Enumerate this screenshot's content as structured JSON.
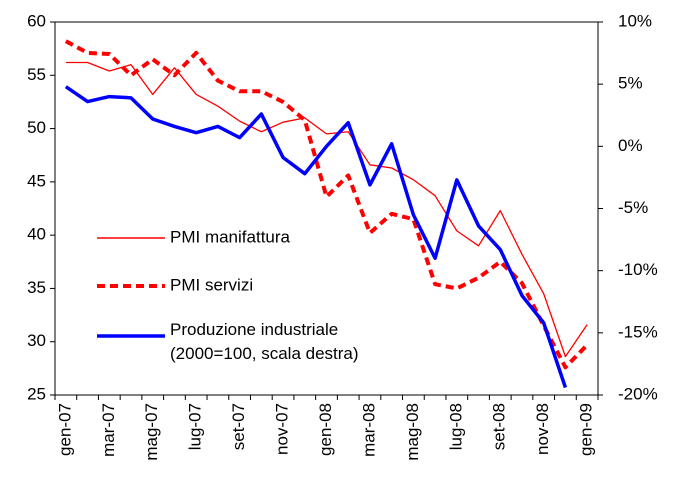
{
  "chart_data": {
    "type": "line",
    "categories": [
      "gen-07",
      null,
      "mar-07",
      null,
      "mag-07",
      null,
      "lug-07",
      null,
      "set-07",
      null,
      "nov-07",
      null,
      "gen-08",
      null,
      "mar-08",
      null,
      "mag-08",
      null,
      "lug-08",
      null,
      "set-08",
      null,
      "nov-08",
      null,
      "gen-09"
    ],
    "series": [
      {
        "name": "PMI manifattura",
        "color": "#ff0000",
        "style": "thin",
        "values": [
          56.2,
          56.2,
          55.4,
          56.0,
          53.2,
          55.7,
          53.2,
          52.1,
          50.7,
          49.7,
          50.6,
          51.0,
          49.5,
          49.7,
          46.6,
          46.3,
          45.2,
          43.7,
          40.4,
          39.0,
          42.3,
          38.2,
          34.5,
          28.6,
          31.6
        ]
      },
      {
        "name": "PMI servizi",
        "color": "#ff0000",
        "style": "dashed",
        "values": [
          58.2,
          57.1,
          57.0,
          55.0,
          56.5,
          55.0,
          57.1,
          54.5,
          53.5,
          53.5,
          52.5,
          50.8,
          43.6,
          45.6,
          40.2,
          42.0,
          41.5,
          35.4,
          35.0,
          36.0,
          37.5,
          35.5,
          31.5,
          27.6,
          29.7
        ]
      },
      {
        "name": "Produzione industriale\n(2000=100, scala destra)",
        "color": "#0000ff",
        "style": "thick",
        "axis": "y2",
        "values": [
          4.8,
          3.6,
          4.0,
          3.9,
          2.2,
          1.6,
          1.1,
          1.6,
          0.7,
          2.6,
          -0.9,
          -2.2,
          0.0,
          1.9,
          -3.1,
          0.2,
          -5.5,
          -9.0,
          -2.7,
          -6.4,
          -8.3,
          -12.0,
          -14.2,
          -19.4,
          null
        ]
      }
    ],
    "ylim": [
      25,
      60
    ],
    "yticks": [
      25,
      30,
      35,
      40,
      45,
      50,
      55,
      60
    ],
    "y2lim": [
      -20,
      10
    ],
    "y2ticks": [
      {
        "value": -20,
        "label": "-20%"
      },
      {
        "value": -15,
        "label": "-15%"
      },
      {
        "value": -10,
        "label": "-10%"
      },
      {
        "value": -5,
        "label": "-5%"
      },
      {
        "value": 0,
        "label": "0%"
      },
      {
        "value": 5,
        "label": "5%"
      },
      {
        "value": 10,
        "label": "10%"
      }
    ],
    "grid": false
  }
}
